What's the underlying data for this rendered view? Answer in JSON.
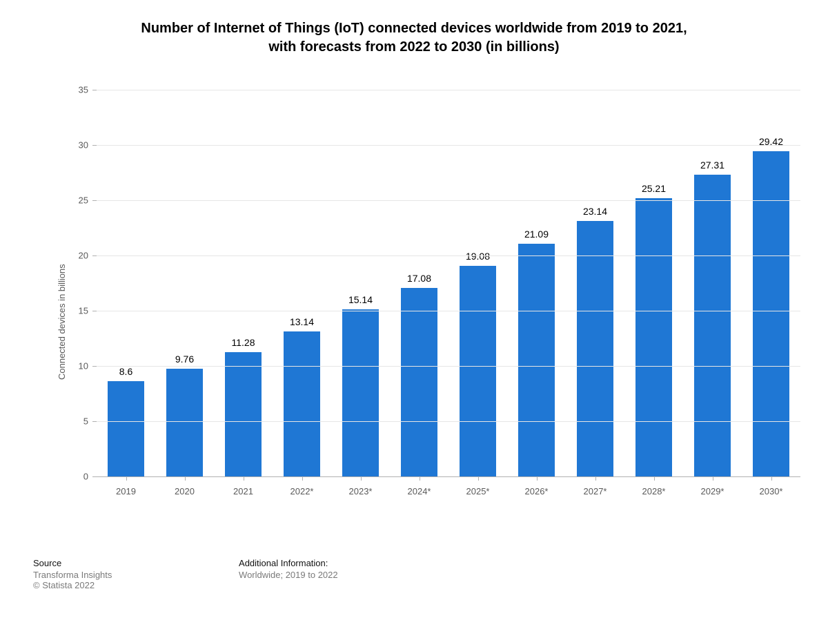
{
  "title_line1": "Number of Internet of Things (IoT) connected devices worldwide from 2019 to 2021,",
  "title_line2": "with forecasts from 2022 to 2030 (in billions)",
  "title_fontsize": 20,
  "y_axis_title": "Connected devices in billions",
  "chart": {
    "type": "bar",
    "categories": [
      "2019",
      "2020",
      "2021",
      "2022*",
      "2023*",
      "2024*",
      "2025*",
      "2026*",
      "2027*",
      "2028*",
      "2029*",
      "2030*"
    ],
    "values": [
      8.6,
      9.76,
      11.28,
      13.14,
      15.14,
      17.08,
      19.08,
      21.09,
      23.14,
      25.21,
      27.31,
      29.42
    ],
    "value_labels": [
      "8.6",
      "9.76",
      "11.28",
      "13.14",
      "15.14",
      "17.08",
      "19.08",
      "21.09",
      "23.14",
      "25.21",
      "27.31",
      "29.42"
    ],
    "bar_color": "#1f77d4",
    "y_min": 0,
    "y_max": 35,
    "y_ticks": [
      0,
      5,
      10,
      15,
      20,
      25,
      30,
      35
    ],
    "grid_color": "#e6e6e6",
    "axis_color": "#b0b0b0",
    "background_color": "#ffffff",
    "bar_width_ratio": 0.62,
    "tick_label_color": "#5a5a5a",
    "tick_label_fontsize": 13,
    "value_label_fontsize": 14
  },
  "footer": {
    "source_heading": "Source",
    "source_line1": "Transforma Insights",
    "source_line2": "© Statista 2022",
    "info_heading": "Additional Information:",
    "info_line": "Worldwide; 2019 to 2022"
  }
}
